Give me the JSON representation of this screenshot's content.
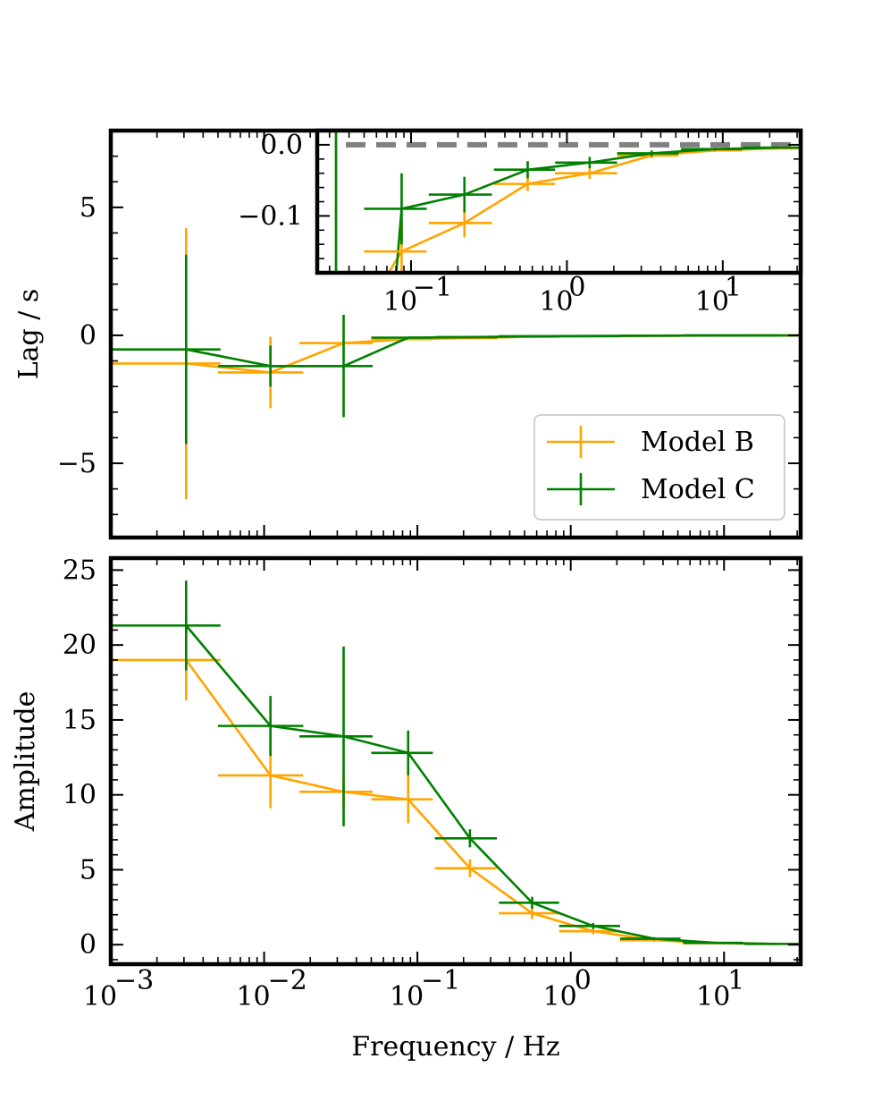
{
  "chart_data": [
    {
      "type": "line",
      "panel": "lag",
      "xscale": "log",
      "xlim": [
        0.001,
        31.6
      ],
      "ylim": [
        -7.9,
        8.0
      ],
      "ylabel": "Lag / s",
      "xlabel": "",
      "yticks": [
        -5,
        0,
        5
      ],
      "ytick_labels": [
        "−5",
        "0",
        "5"
      ],
      "legend": {
        "placement": "lower-right",
        "entries": [
          "Model B",
          "Model C"
        ]
      },
      "series": [
        {
          "name": "Model B",
          "color": "#FFA500",
          "x": [
            0.0031,
            0.011,
            0.033,
            0.087,
            0.22,
            0.56,
            1.4,
            3.5,
            8.9,
            22.6
          ],
          "xerr_low": [
            0.0021,
            0.006,
            0.016,
            0.037,
            0.09,
            0.22,
            0.56,
            1.4,
            3.5,
            9.0
          ],
          "xerr_high": [
            0.0021,
            0.007,
            0.018,
            0.039,
            0.11,
            0.28,
            0.7,
            1.7,
            4.4,
            9.0
          ],
          "y": [
            -1.1,
            -1.45,
            -0.3,
            -0.15,
            -0.11,
            -0.055,
            -0.04,
            -0.015,
            -0.008,
            -0.005
          ],
          "yerr": [
            5.3,
            1.4,
            0.0,
            0.0,
            0.0,
            0.0,
            0.0,
            0.0,
            0.0,
            0.0
          ]
        },
        {
          "name": "Model C",
          "color": "#008000",
          "x": [
            0.0031,
            0.011,
            0.033,
            0.087,
            0.22,
            0.56,
            1.4,
            3.5,
            8.9,
            22.6
          ],
          "xerr_low": [
            0.0021,
            0.006,
            0.016,
            0.037,
            0.09,
            0.22,
            0.56,
            1.4,
            3.5,
            9.0
          ],
          "xerr_high": [
            0.0021,
            0.007,
            0.018,
            0.039,
            0.11,
            0.28,
            0.7,
            1.7,
            4.4,
            9.0
          ],
          "y": [
            -0.55,
            -1.2,
            -1.2,
            -0.09,
            -0.07,
            -0.035,
            -0.025,
            -0.012,
            -0.006,
            -0.004
          ],
          "yerr": [
            3.7,
            0.8,
            2.0,
            0.0,
            0.0,
            0.0,
            0.0,
            0.0,
            0.0,
            0.0
          ]
        }
      ]
    },
    {
      "type": "line",
      "panel": "inset",
      "xscale": "log",
      "xlim": [
        0.025,
        31.6
      ],
      "ylim": [
        -0.18,
        0.02
      ],
      "yticks": [
        0.0,
        -0.1
      ],
      "ytick_labels": [
        "0.0",
        "−0.1"
      ],
      "xticks": [
        0.1,
        1,
        10
      ],
      "xtick_labels": [
        "10",
        "10",
        "10"
      ],
      "xtick_exponents": [
        "−1",
        "0",
        "1"
      ],
      "reference_line": {
        "y": 0.0,
        "color": "#808080",
        "style": "dashed"
      },
      "series": [
        {
          "name": "Model B",
          "color": "#FFA500",
          "x": [
            0.087,
            0.22,
            0.56,
            1.4,
            3.5,
            8.9,
            22.6
          ],
          "xerr_low": [
            0.037,
            0.09,
            0.22,
            0.56,
            1.4,
            3.5,
            9.0
          ],
          "xerr_high": [
            0.039,
            0.11,
            0.28,
            0.7,
            1.7,
            4.4,
            9.0
          ],
          "y": [
            -0.15,
            -0.11,
            -0.055,
            -0.04,
            -0.015,
            -0.008,
            -0.005
          ],
          "yerr": [
            0.04,
            0.02,
            0.01,
            0.008,
            0.004,
            0.002,
            0.001
          ]
        },
        {
          "name": "Model C",
          "color": "#008000",
          "x": [
            0.087,
            0.22,
            0.56,
            1.4,
            3.5,
            8.9,
            22.6
          ],
          "xerr_low": [
            0.037,
            0.09,
            0.22,
            0.56,
            1.4,
            3.5,
            9.0
          ],
          "xerr_high": [
            0.039,
            0.11,
            0.28,
            0.7,
            1.7,
            4.4,
            9.0
          ],
          "y": [
            -0.09,
            -0.07,
            -0.035,
            -0.025,
            -0.012,
            -0.006,
            -0.004
          ],
          "yerr": [
            0.05,
            0.025,
            0.012,
            0.008,
            0.004,
            0.002,
            0.001
          ]
        }
      ]
    },
    {
      "type": "line",
      "panel": "amplitude",
      "xscale": "log",
      "xlim": [
        0.001,
        31.6
      ],
      "ylim": [
        -1.3,
        25.8
      ],
      "ylabel": "Amplitude",
      "xlabel": "Frequency / Hz",
      "yticks": [
        0,
        5,
        10,
        15,
        20,
        25
      ],
      "ytick_labels": [
        "0",
        "5",
        "10",
        "15",
        "20",
        "25"
      ],
      "xticks": [
        0.001,
        0.01,
        0.1,
        1,
        10
      ],
      "xtick_labels": [
        "10",
        "10",
        "10",
        "10",
        "10"
      ],
      "xtick_exponents": [
        "−3",
        "−2",
        "−1",
        "0",
        "1"
      ],
      "series": [
        {
          "name": "Model B",
          "color": "#FFA500",
          "x": [
            0.0031,
            0.011,
            0.033,
            0.087,
            0.22,
            0.56,
            1.4,
            3.5,
            8.9,
            22.6
          ],
          "xerr_low": [
            0.0021,
            0.006,
            0.016,
            0.037,
            0.09,
            0.22,
            0.56,
            1.4,
            3.5,
            9.0
          ],
          "xerr_high": [
            0.0021,
            0.007,
            0.018,
            0.039,
            0.11,
            0.28,
            0.7,
            1.7,
            4.4,
            9.0
          ],
          "y": [
            19.0,
            11.3,
            10.2,
            9.7,
            5.1,
            2.1,
            0.9,
            0.3,
            0.1,
            0.05
          ],
          "yerr": [
            2.7,
            2.2,
            1.1,
            1.6,
            0.6,
            0.4,
            0.2,
            0.1,
            0.05,
            0.02
          ]
        },
        {
          "name": "Model C",
          "color": "#008000",
          "x": [
            0.0031,
            0.011,
            0.033,
            0.087,
            0.22,
            0.56,
            1.4,
            3.5,
            8.9,
            22.6
          ],
          "xerr_low": [
            0.0021,
            0.006,
            0.016,
            0.037,
            0.09,
            0.22,
            0.56,
            1.4,
            3.5,
            9.0
          ],
          "xerr_high": [
            0.0021,
            0.007,
            0.018,
            0.039,
            0.11,
            0.28,
            0.7,
            1.7,
            4.4,
            9.0
          ],
          "y": [
            21.3,
            14.6,
            13.9,
            12.8,
            7.1,
            2.8,
            1.25,
            0.4,
            0.12,
            0.05
          ],
          "yerr": [
            3.0,
            2.0,
            6.0,
            1.5,
            0.6,
            0.4,
            0.2,
            0.1,
            0.05,
            0.02
          ]
        }
      ]
    }
  ]
}
